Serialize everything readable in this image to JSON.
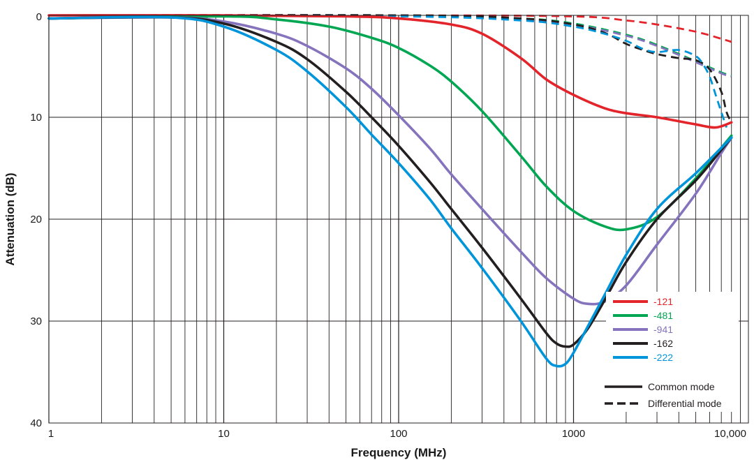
{
  "chart_data": {
    "type": "line",
    "title": "",
    "xlabel": "Frequency (MHz)",
    "ylabel": "Attenuation (dB)",
    "x_scale": "log",
    "xlim": [
      1,
      10000
    ],
    "ylim": [
      0,
      40
    ],
    "y_inverted": true,
    "grid": true,
    "x_ticks": [
      {
        "value": 1,
        "label": "1"
      },
      {
        "value": 10,
        "label": "10"
      },
      {
        "value": 100,
        "label": "100"
      },
      {
        "value": 1000,
        "label": "1000"
      },
      {
        "value": 10000,
        "label": "10,000"
      }
    ],
    "y_ticks": [
      {
        "value": 0,
        "label": "0"
      },
      {
        "value": 10,
        "label": "10"
      },
      {
        "value": 20,
        "label": "20"
      },
      {
        "value": 30,
        "label": "30"
      },
      {
        "value": 40,
        "label": "40"
      }
    ],
    "legend": {
      "placement": "bottom-right",
      "series_entries": [
        {
          "label": "-121",
          "color": "#e3242b"
        },
        {
          "label": "-481",
          "color": "#00a651"
        },
        {
          "label": "-941",
          "color": "#8573bd"
        },
        {
          "label": "-162",
          "color": "#231f20"
        },
        {
          "label": "-222",
          "color": "#0095da"
        }
      ],
      "style_entries": [
        {
          "label": "Common mode",
          "dash": "solid"
        },
        {
          "label": "Differential mode",
          "dash": "dashed"
        }
      ]
    },
    "series": [
      {
        "name": "-121",
        "mode": "common",
        "color": "#e3242b",
        "x": [
          1,
          10,
          50,
          100,
          200,
          300,
          500,
          700,
          1000,
          1500,
          2000,
          3000,
          5000,
          6500,
          8000
        ],
        "y": [
          0.0,
          0.0,
          0.1,
          0.3,
          0.9,
          1.8,
          4.2,
          6.3,
          7.8,
          9.1,
          9.6,
          10.0,
          10.7,
          11.0,
          10.5
        ]
      },
      {
        "name": "-481",
        "mode": "common",
        "color": "#00a651",
        "x": [
          1,
          10,
          20,
          40,
          70,
          100,
          150,
          200,
          300,
          500,
          700,
          1000,
          1500,
          2000,
          3000,
          5000,
          7000,
          8000
        ],
        "y": [
          0.3,
          0.1,
          0.4,
          1.1,
          2.2,
          3.2,
          4.9,
          6.5,
          9.4,
          13.8,
          16.8,
          19.2,
          20.7,
          21.0,
          19.8,
          16.0,
          13.0,
          11.8
        ]
      },
      {
        "name": "-941",
        "mode": "common",
        "color": "#8573bd",
        "x": [
          1,
          5,
          10,
          20,
          30,
          50,
          70,
          100,
          150,
          200,
          300,
          500,
          700,
          1000,
          1200,
          1500,
          2000,
          3000,
          5000,
          7000,
          8000
        ],
        "y": [
          0.3,
          0.2,
          0.6,
          1.8,
          3.0,
          5.2,
          7.2,
          9.8,
          13.0,
          15.6,
          19.0,
          23.2,
          25.8,
          27.8,
          28.3,
          28.1,
          26.5,
          22.5,
          17.5,
          13.5,
          12.0
        ]
      },
      {
        "name": "-162",
        "mode": "common",
        "color": "#231f20",
        "x": [
          1,
          5,
          10,
          20,
          30,
          50,
          70,
          100,
          150,
          200,
          300,
          500,
          700,
          800,
          900,
          1000,
          1200,
          1500,
          2000,
          3000,
          5000,
          7000,
          8000
        ],
        "y": [
          0.3,
          0.2,
          0.8,
          2.6,
          4.3,
          7.5,
          10.0,
          12.8,
          16.3,
          19.0,
          22.8,
          27.8,
          31.2,
          32.2,
          32.5,
          32.3,
          30.8,
          28.0,
          24.2,
          20.0,
          16.2,
          13.2,
          12.0
        ]
      },
      {
        "name": "-222",
        "mode": "common",
        "color": "#0095da",
        "x": [
          1,
          5,
          10,
          20,
          30,
          50,
          70,
          100,
          150,
          200,
          300,
          500,
          700,
          800,
          900,
          1000,
          1200,
          1500,
          2000,
          3000,
          5000,
          7000,
          8000
        ],
        "y": [
          0.3,
          0.2,
          1.1,
          3.4,
          5.5,
          9.0,
          11.7,
          14.5,
          18.0,
          20.9,
          24.8,
          30.0,
          33.7,
          34.4,
          34.2,
          33.1,
          30.6,
          27.5,
          23.5,
          19.0,
          15.5,
          13.0,
          12.0
        ]
      },
      {
        "name": "-121",
        "mode": "differential",
        "color": "#e3242b",
        "x": [
          1,
          100,
          1000,
          2000,
          3000,
          5000,
          7000,
          8000
        ],
        "y": [
          0.0,
          0.0,
          0.1,
          0.5,
          0.9,
          1.6,
          2.3,
          2.6
        ]
      },
      {
        "name": "-481",
        "mode": "differential",
        "color": "#00a651",
        "x": [
          1,
          100,
          500,
          1000,
          2000,
          3000,
          5000,
          7000,
          8000
        ],
        "y": [
          0.0,
          0.0,
          0.3,
          0.8,
          1.9,
          2.9,
          4.5,
          5.6,
          5.9
        ]
      },
      {
        "name": "-941",
        "mode": "differential",
        "color": "#8573bd",
        "x": [
          1,
          100,
          500,
          1000,
          2000,
          3000,
          5000,
          7000,
          8000
        ],
        "y": [
          0.0,
          0.0,
          0.4,
          0.9,
          2.0,
          3.0,
          4.6,
          5.7,
          6.0
        ]
      },
      {
        "name": "-162",
        "mode": "differential",
        "color": "#231f20",
        "x": [
          1,
          100,
          500,
          1000,
          1500,
          2000,
          2500,
          3000,
          4000,
          5000,
          6000,
          7000,
          7500,
          8000
        ],
        "y": [
          0.0,
          0.0,
          0.3,
          0.9,
          1.7,
          2.8,
          3.4,
          3.8,
          4.2,
          4.4,
          5.3,
          7.5,
          9.5,
          10.5
        ]
      },
      {
        "name": "-222",
        "mode": "differential",
        "color": "#0095da",
        "x": [
          1,
          100,
          500,
          1000,
          1500,
          2000,
          2500,
          3000,
          4000,
          5000,
          5500,
          6000,
          6500,
          7000,
          7500
        ],
        "y": [
          0.0,
          0.1,
          0.5,
          1.1,
          1.8,
          2.5,
          3.3,
          3.6,
          3.4,
          4.0,
          4.8,
          6.0,
          7.8,
          9.5,
          11.0
        ]
      }
    ]
  }
}
